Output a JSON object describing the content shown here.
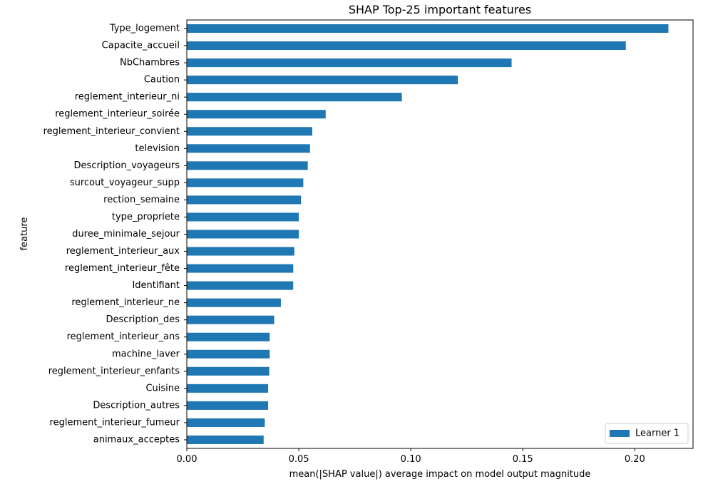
{
  "chart_data": {
    "type": "bar",
    "orientation": "horizontal",
    "title": "SHAP Top-25 important features",
    "xlabel": "mean(|SHAP value|) average impact on model output magnitude",
    "ylabel": "feature",
    "xlim": [
      0,
      0.226
    ],
    "xticks": [
      0.0,
      0.05,
      0.1,
      0.15,
      0.2
    ],
    "xtick_labels": [
      "0.00",
      "0.05",
      "0.10",
      "0.15",
      "0.20"
    ],
    "grid": false,
    "legend_position": "bottom-right",
    "bar_color": "#1f77b4",
    "categories": [
      "Type_logement",
      "Capacite_accueil",
      "NbChambres",
      "Caution",
      "reglement_interieur_ni",
      "reglement_interieur_soirée",
      "reglement_interieur_convient",
      "television",
      "Description_voyageurs",
      "surcout_voyageur_supp",
      "rection_semaine",
      "type_propriete",
      "duree_minimale_sejour",
      "reglement_interieur_aux",
      "reglement_interieur_fête",
      "Identifiant",
      "reglement_interieur_ne",
      "Description_des",
      "reglement_interieur_ans",
      "machine_laver",
      "reglement_interieur_enfants",
      "Cuisine",
      "Description_autres",
      "reglement_interieur_fumeur",
      "animaux_acceptes"
    ],
    "series": [
      {
        "name": "Learner 1",
        "values": [
          0.215,
          0.196,
          0.145,
          0.121,
          0.096,
          0.062,
          0.056,
          0.055,
          0.054,
          0.052,
          0.051,
          0.05,
          0.05,
          0.048,
          0.0475,
          0.0475,
          0.042,
          0.039,
          0.037,
          0.037,
          0.0368,
          0.0363,
          0.0363,
          0.0348,
          0.0343
        ]
      }
    ]
  }
}
